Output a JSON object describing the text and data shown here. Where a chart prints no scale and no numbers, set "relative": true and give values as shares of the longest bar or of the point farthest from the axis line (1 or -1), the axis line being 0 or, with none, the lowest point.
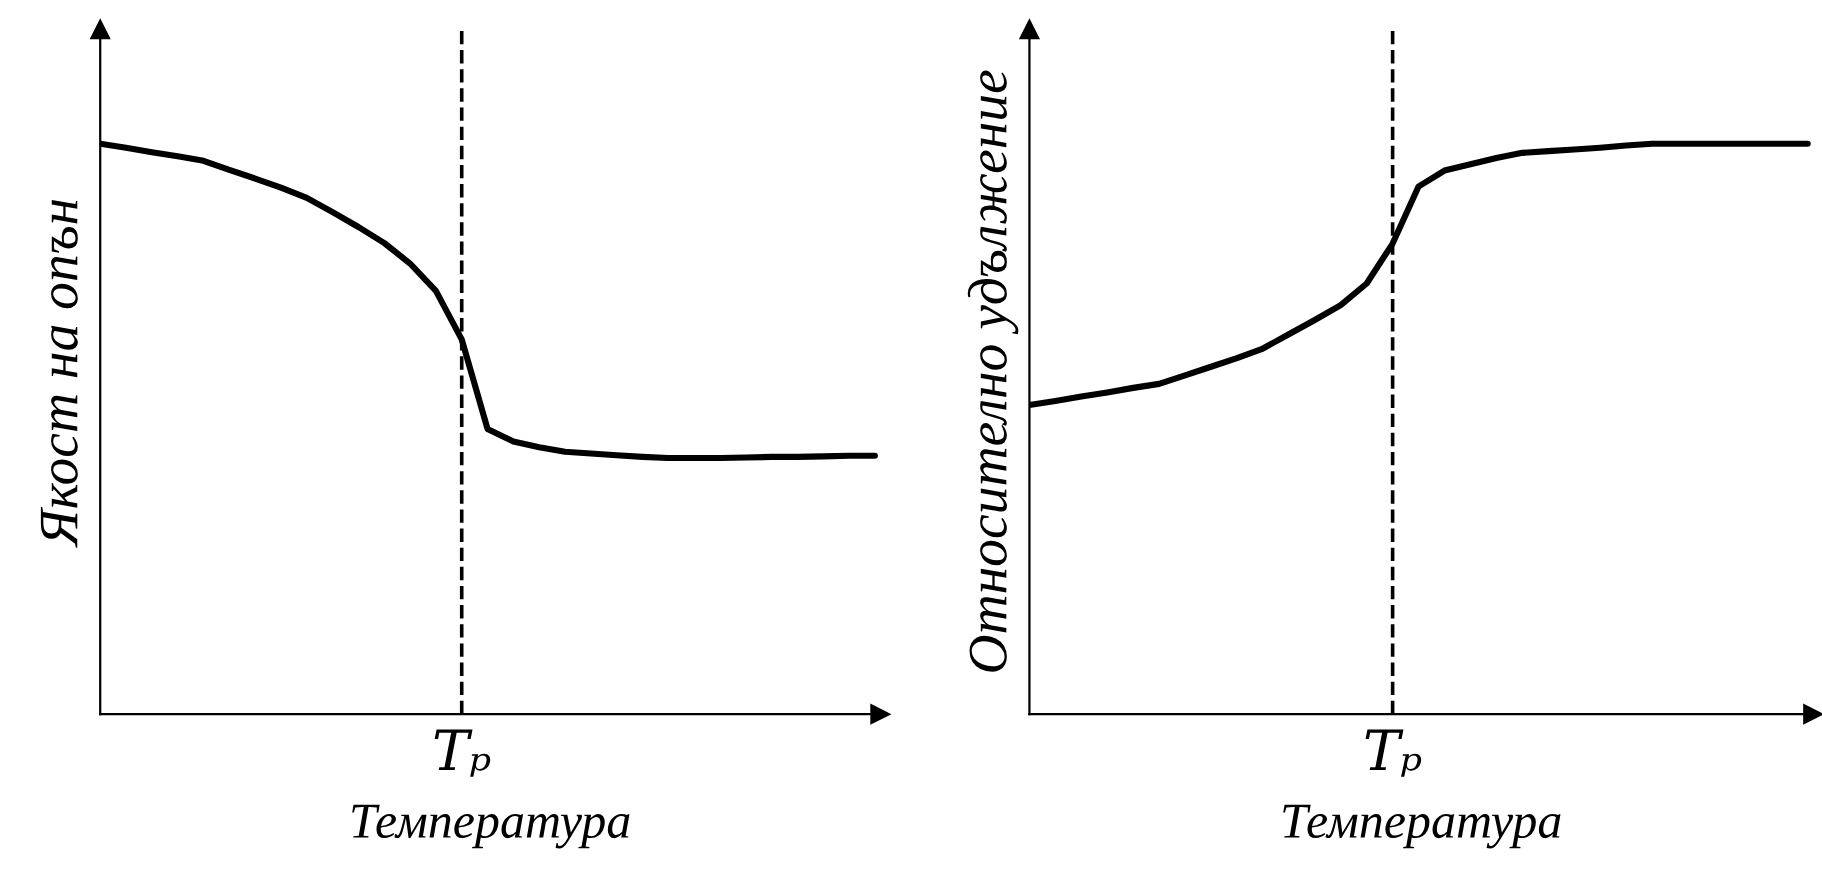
{
  "chart_data": [
    {
      "type": "line",
      "relative": true,
      "xlabel": "Температура",
      "ylabel": "Якост на опън",
      "legend": false,
      "marker": "none",
      "line_style": "solid",
      "categories": [
        null,
        null,
        null,
        null,
        null,
        null,
        null,
        null,
        null,
        null,
        null,
        null,
        null,
        null,
        null,
        null,
        null,
        null,
        null,
        null,
        null,
        null,
        null,
        null,
        null,
        null,
        null,
        null,
        null,
        null,
        null
      ],
      "annotations": [
        "Tₚ"
      ],
      "series": [
        {
          "color": "#000000",
          "values": [
            1.0,
            0.993,
            0.985,
            0.978,
            0.97,
            0.954,
            0.939,
            0.923,
            0.905,
            0.88,
            0.854,
            0.826,
            0.79,
            0.742,
            0.657,
            0.5,
            0.478,
            0.468,
            0.46,
            0.457,
            0.454,
            0.451,
            0.449,
            0.449,
            0.449,
            0.45,
            0.451,
            0.451,
            0.452,
            0.453,
            0.453
          ]
        }
      ]
    },
    {
      "type": "line",
      "relative": true,
      "xlabel": "Температура",
      "ylabel": "Относително удължение",
      "legend": false,
      "marker": "none",
      "line_style": "solid",
      "categories": [
        null,
        null,
        null,
        null,
        null,
        null,
        null,
        null,
        null,
        null,
        null,
        null,
        null,
        null,
        null,
        null,
        null,
        null,
        null,
        null,
        null,
        null,
        null,
        null,
        null,
        null,
        null,
        null,
        null,
        null,
        null
      ],
      "annotations": [
        "Tₚ"
      ],
      "series": [
        {
          "color": "#000000",
          "values": [
            0.542,
            0.549,
            0.557,
            0.564,
            0.572,
            0.579,
            0.594,
            0.609,
            0.624,
            0.641,
            0.666,
            0.691,
            0.717,
            0.755,
            0.825,
            0.925,
            0.953,
            0.964,
            0.975,
            0.984,
            0.987,
            0.99,
            0.993,
            0.997,
            1.0,
            1.0,
            1.0,
            1.0,
            1.0,
            1.0,
            1.0
          ]
        }
      ]
    }
  ]
}
